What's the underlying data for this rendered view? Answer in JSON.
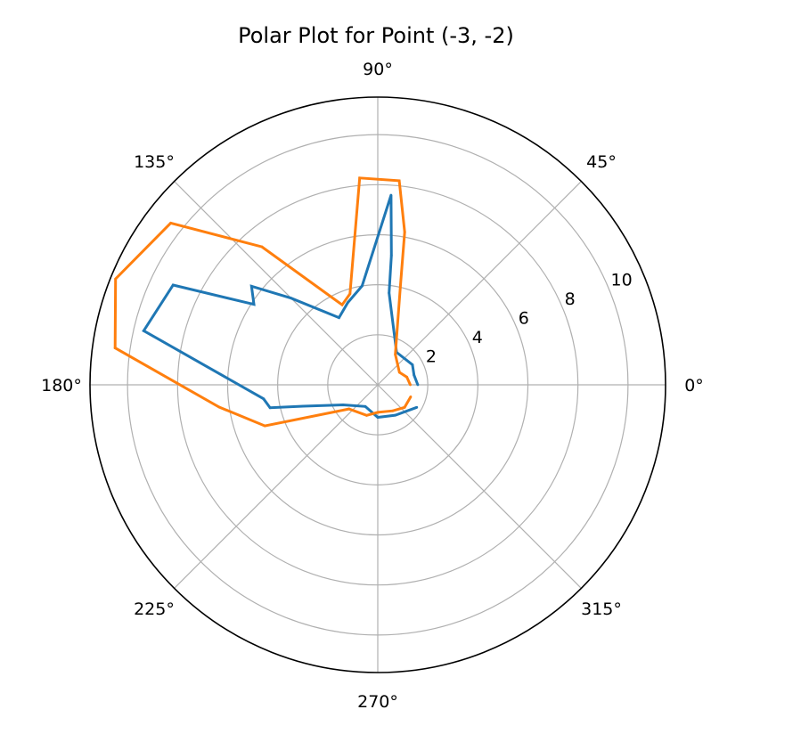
{
  "chart_data": {
    "type": "line",
    "projection": "polar",
    "title": "Polar Plot for Point (-3, -2)",
    "angle_unit": "degrees",
    "theta_tick_labels": [
      {
        "angle": 0,
        "label": "0°"
      },
      {
        "angle": 45,
        "label": "45°"
      },
      {
        "angle": 90,
        "label": "90°"
      },
      {
        "angle": 135,
        "label": "135°"
      },
      {
        "angle": 180,
        "label": "180°"
      },
      {
        "angle": 225,
        "label": "225°"
      },
      {
        "angle": 270,
        "label": "270°"
      },
      {
        "angle": 315,
        "label": "315°"
      }
    ],
    "r_ticks": [
      2,
      4,
      6,
      8,
      10
    ],
    "r_tick_labels": [
      "2",
      "4",
      "6",
      "8",
      "10"
    ],
    "r_grid": [
      2,
      4,
      6,
      8,
      10
    ],
    "r_lim": [
      0,
      11.5
    ],
    "r_label_angle_deg": 22.5,
    "grid": true,
    "series": [
      {
        "color": "#1f77b4",
        "points": [
          {
            "theta": 0,
            "r": 1.6
          },
          {
            "theta": 15,
            "r": 1.5
          },
          {
            "theta": 30,
            "r": 1.6
          },
          {
            "theta": 60,
            "r": 1.5
          },
          {
            "theta": 83,
            "r": 3.7
          },
          {
            "theta": 84,
            "r": 5.2
          },
          {
            "theta": 86,
            "r": 7.6
          },
          {
            "theta": 99,
            "r": 4.0
          },
          {
            "theta": 110,
            "r": 3.5
          },
          {
            "theta": 120,
            "r": 3.1
          },
          {
            "theta": 135,
            "r": 4.9
          },
          {
            "theta": 142,
            "r": 6.4
          },
          {
            "theta": 147,
            "r": 5.9
          },
          {
            "theta": 154,
            "r": 9.1
          },
          {
            "theta": 167,
            "r": 9.6
          },
          {
            "theta": 187,
            "r": 4.6
          },
          {
            "theta": 192,
            "r": 4.4
          },
          {
            "theta": 196,
            "r": 3.1
          },
          {
            "theta": 210,
            "r": 1.6
          },
          {
            "theta": 240,
            "r": 1.0
          },
          {
            "theta": 270,
            "r": 1.3
          },
          {
            "theta": 300,
            "r": 1.4
          },
          {
            "theta": 330,
            "r": 1.8
          }
        ]
      },
      {
        "color": "#ff7f0e",
        "points": [
          {
            "theta": 0,
            "r": 1.3
          },
          {
            "theta": 15,
            "r": 1.2
          },
          {
            "theta": 30,
            "r": 1.0
          },
          {
            "theta": 60,
            "r": 1.4
          },
          {
            "theta": 77,
            "r": 4.0
          },
          {
            "theta": 80,
            "r": 6.2
          },
          {
            "theta": 84,
            "r": 8.2
          },
          {
            "theta": 95,
            "r": 8.3
          },
          {
            "theta": 107,
            "r": 3.8
          },
          {
            "theta": 114,
            "r": 3.5
          },
          {
            "theta": 130,
            "r": 7.2
          },
          {
            "theta": 142,
            "r": 10.5
          },
          {
            "theta": 158,
            "r": 11.3
          },
          {
            "theta": 172,
            "r": 10.6
          },
          {
            "theta": 188,
            "r": 6.4
          },
          {
            "theta": 200,
            "r": 4.8
          },
          {
            "theta": 220,
            "r": 1.5
          },
          {
            "theta": 250,
            "r": 1.3
          },
          {
            "theta": 270,
            "r": 1.1
          },
          {
            "theta": 300,
            "r": 1.2
          },
          {
            "theta": 320,
            "r": 1.4
          },
          {
            "theta": 340,
            "r": 1.4
          }
        ]
      }
    ]
  }
}
